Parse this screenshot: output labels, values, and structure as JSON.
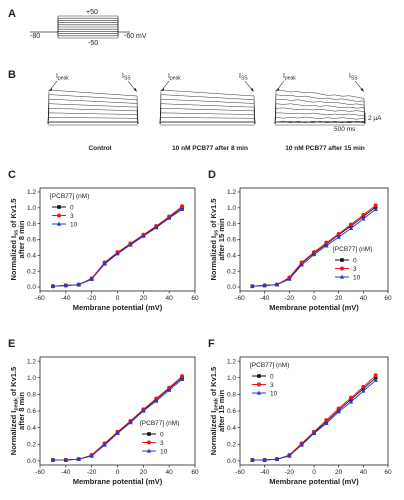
{
  "panels": {
    "A": {
      "label": "A",
      "protocol": {
        "top_value": "+50",
        "bottom_value": "-50",
        "holding_left": "-80",
        "holding_right": "-60 mV",
        "steps_mV": [
          -50,
          -40,
          -30,
          -20,
          -10,
          0,
          10,
          20,
          30,
          40,
          50
        ]
      }
    },
    "B": {
      "label": "B",
      "peak_label": "I",
      "peak_sub": "peak",
      "ss_label": "I",
      "ss_sub": "SS",
      "scalebar_current": "2 µA",
      "scalebar_time": "500 ms",
      "conditions": [
        "Control",
        "10 nM PCB77 after 8 min",
        "10 nM PCB77 after 15 min"
      ]
    }
  },
  "legend": {
    "title": "[PCB77]  (nM)",
    "entries": [
      "0",
      "3",
      "10"
    ]
  },
  "colors": {
    "series_0": "#111111",
    "series_3": "#e8191b",
    "series_10": "#1f3bd6",
    "trace": "#333333"
  },
  "chart_data": [
    {
      "type": "line",
      "panel": "C",
      "label": "C",
      "ylabel_prefix": "Normalized I",
      "ylabel_sub": "ss",
      "ylabel_suffix": " of Kv1.5",
      "ylabel_line2": "after 8 min",
      "xlabel": "Membrane potential (mV)",
      "x": [
        -50,
        -40,
        -30,
        -20,
        -10,
        0,
        10,
        20,
        30,
        40,
        50
      ],
      "xlim": [
        -60,
        60
      ],
      "ylim": [
        -0.05,
        1.25
      ],
      "xticks": [
        -60,
        -40,
        -20,
        0,
        20,
        40,
        60
      ],
      "yticks": [
        0.0,
        0.2,
        0.4,
        0.6,
        0.8,
        1.0,
        1.2
      ],
      "legend_position": "top-left",
      "series": [
        {
          "name": "0",
          "values": [
            0.01,
            0.02,
            0.03,
            0.1,
            0.3,
            0.43,
            0.54,
            0.65,
            0.76,
            0.88,
            1.0
          ]
        },
        {
          "name": "3",
          "values": [
            0.01,
            0.02,
            0.03,
            0.11,
            0.31,
            0.44,
            0.55,
            0.66,
            0.77,
            0.89,
            1.02
          ]
        },
        {
          "name": "10",
          "values": [
            0.01,
            0.02,
            0.03,
            0.1,
            0.29,
            0.42,
            0.53,
            0.64,
            0.75,
            0.87,
            0.98
          ]
        }
      ]
    },
    {
      "type": "line",
      "panel": "D",
      "label": "D",
      "ylabel_prefix": "Normalized I",
      "ylabel_sub": "ss",
      "ylabel_suffix": " of Kv1.5",
      "ylabel_line2": "after 15 min",
      "xlabel": "Membrane potential (mV)",
      "x": [
        -50,
        -40,
        -30,
        -20,
        -10,
        0,
        10,
        20,
        30,
        40,
        50
      ],
      "xlim": [
        -60,
        60
      ],
      "ylim": [
        -0.05,
        1.25
      ],
      "xticks": [
        -60,
        -40,
        -20,
        0,
        20,
        40,
        60
      ],
      "yticks": [
        0.0,
        0.2,
        0.4,
        0.6,
        0.8,
        1.0,
        1.2
      ],
      "legend_position": "bottom-right",
      "series": [
        {
          "name": "0",
          "values": [
            0.01,
            0.02,
            0.03,
            0.11,
            0.3,
            0.43,
            0.54,
            0.66,
            0.77,
            0.89,
            1.01
          ]
        },
        {
          "name": "3",
          "values": [
            0.01,
            0.02,
            0.03,
            0.12,
            0.31,
            0.44,
            0.56,
            0.67,
            0.79,
            0.91,
            1.03
          ]
        },
        {
          "name": "10",
          "values": [
            0.01,
            0.02,
            0.03,
            0.1,
            0.28,
            0.41,
            0.52,
            0.63,
            0.74,
            0.86,
            0.98
          ]
        }
      ]
    },
    {
      "type": "line",
      "panel": "E",
      "label": "E",
      "ylabel_prefix": "Normalized I",
      "ylabel_sub": "peak",
      "ylabel_suffix": " of Kv1.5",
      "ylabel_line2": "after 8 min",
      "xlabel": "Membrane potential (mV)",
      "x": [
        -50,
        -40,
        -30,
        -20,
        -10,
        0,
        10,
        20,
        30,
        40,
        50
      ],
      "xlim": [
        -60,
        60
      ],
      "ylim": [
        -0.05,
        1.25
      ],
      "xticks": [
        -60,
        -40,
        -20,
        0,
        20,
        40,
        60
      ],
      "yticks": [
        0.0,
        0.2,
        0.4,
        0.6,
        0.8,
        1.0,
        1.2
      ],
      "legend_position": "bottom-right",
      "series": [
        {
          "name": "0",
          "values": [
            0.01,
            0.01,
            0.02,
            0.06,
            0.2,
            0.34,
            0.47,
            0.61,
            0.74,
            0.87,
            1.0
          ]
        },
        {
          "name": "3",
          "values": [
            0.01,
            0.01,
            0.02,
            0.07,
            0.21,
            0.35,
            0.48,
            0.62,
            0.75,
            0.88,
            1.02
          ]
        },
        {
          "name": "10",
          "values": [
            0.01,
            0.01,
            0.02,
            0.06,
            0.19,
            0.33,
            0.46,
            0.6,
            0.72,
            0.85,
            0.98
          ]
        }
      ]
    },
    {
      "type": "line",
      "panel": "F",
      "label": "F",
      "ylabel_prefix": "Normalized I",
      "ylabel_sub": "peak",
      "ylabel_suffix": " of Kv1.5",
      "ylabel_line2": "after 15 min",
      "xlabel": "Membrane potential (mV)",
      "x": [
        -50,
        -40,
        -30,
        -20,
        -10,
        0,
        10,
        20,
        30,
        40,
        50
      ],
      "xlim": [
        -60,
        60
      ],
      "ylim": [
        -0.05,
        1.25
      ],
      "xticks": [
        -60,
        -40,
        -20,
        0,
        20,
        40,
        60
      ],
      "yticks": [
        0.0,
        0.2,
        0.4,
        0.6,
        0.8,
        1.0,
        1.2
      ],
      "legend_position": "top-left",
      "series": [
        {
          "name": "0",
          "values": [
            0.01,
            0.01,
            0.02,
            0.06,
            0.2,
            0.34,
            0.47,
            0.61,
            0.74,
            0.87,
            1.0
          ]
        },
        {
          "name": "3",
          "values": [
            0.01,
            0.01,
            0.02,
            0.07,
            0.21,
            0.35,
            0.49,
            0.63,
            0.76,
            0.89,
            1.03
          ]
        },
        {
          "name": "10",
          "values": [
            0.01,
            0.01,
            0.02,
            0.06,
            0.19,
            0.33,
            0.45,
            0.59,
            0.71,
            0.84,
            0.97
          ]
        }
      ]
    }
  ]
}
